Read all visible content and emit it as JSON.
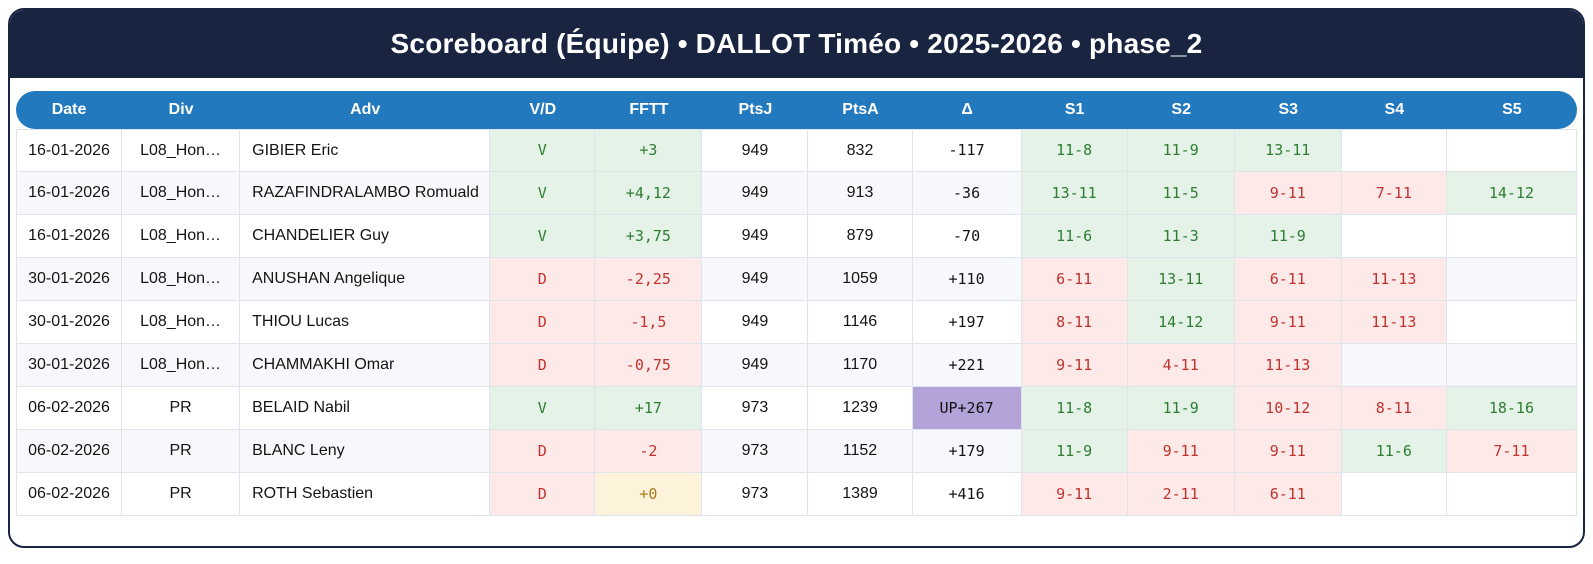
{
  "title": "Scoreboard (Équipe) • DALLOT Timéo • 2025-2026 • phase_2",
  "colors": {
    "navy": "#192440",
    "blue": "#2379bd",
    "win-bg": "#e5f2e7",
    "win-text": "#2e7d32",
    "loss-bg": "#fdeae8",
    "loss-text": "#c0332f",
    "zero-bg": "#fdf3da",
    "zero-text": "#ad7b19",
    "up-bg": "#b4a3d8"
  },
  "table": {
    "columns": [
      {
        "key": "date",
        "label": "Date"
      },
      {
        "key": "div",
        "label": "Div"
      },
      {
        "key": "adv",
        "label": "Adv"
      },
      {
        "key": "vd",
        "label": "V/D"
      },
      {
        "key": "fftt",
        "label": "FFTT"
      },
      {
        "key": "ptsj",
        "label": "PtsJ"
      },
      {
        "key": "ptsa",
        "label": "PtsA"
      },
      {
        "key": "delta",
        "label": "Δ"
      },
      {
        "key": "s1",
        "label": "S1"
      },
      {
        "key": "s2",
        "label": "S2"
      },
      {
        "key": "s3",
        "label": "S3"
      },
      {
        "key": "s4",
        "label": "S4"
      },
      {
        "key": "s5",
        "label": "S5"
      }
    ],
    "rows": [
      {
        "date": "16-01-2026",
        "div": "L08_Hon…",
        "adv": "GIBIER Eric",
        "vd": "V",
        "fftt": "+3",
        "fftt_result": "pos",
        "ptsj": "949",
        "ptsa": "832",
        "delta": "-117",
        "delta_highlight": "",
        "sets": [
          {
            "score": "11-8",
            "result": "win"
          },
          {
            "score": "11-9",
            "result": "win"
          },
          {
            "score": "13-11",
            "result": "win"
          },
          null,
          null
        ]
      },
      {
        "date": "16-01-2026",
        "div": "L08_Hon…",
        "adv": "RAZAFINDRALAMBO Romuald",
        "vd": "V",
        "fftt": "+4,12",
        "fftt_result": "pos",
        "ptsj": "949",
        "ptsa": "913",
        "delta": "-36",
        "delta_highlight": "",
        "sets": [
          {
            "score": "13-11",
            "result": "win"
          },
          {
            "score": "11-5",
            "result": "win"
          },
          {
            "score": "9-11",
            "result": "loss"
          },
          {
            "score": "7-11",
            "result": "loss"
          },
          {
            "score": "14-12",
            "result": "win"
          }
        ]
      },
      {
        "date": "16-01-2026",
        "div": "L08_Hon…",
        "adv": "CHANDELIER Guy",
        "vd": "V",
        "fftt": "+3,75",
        "fftt_result": "pos",
        "ptsj": "949",
        "ptsa": "879",
        "delta": "-70",
        "delta_highlight": "",
        "sets": [
          {
            "score": "11-6",
            "result": "win"
          },
          {
            "score": "11-3",
            "result": "win"
          },
          {
            "score": "11-9",
            "result": "win"
          },
          null,
          null
        ]
      },
      {
        "date": "30-01-2026",
        "div": "L08_Hon…",
        "adv": "ANUSHAN Angelique",
        "vd": "D",
        "fftt": "-2,25",
        "fftt_result": "neg",
        "ptsj": "949",
        "ptsa": "1059",
        "delta": "+110",
        "delta_highlight": "",
        "sets": [
          {
            "score": "6-11",
            "result": "loss"
          },
          {
            "score": "13-11",
            "result": "win"
          },
          {
            "score": "6-11",
            "result": "loss"
          },
          {
            "score": "11-13",
            "result": "loss"
          },
          null
        ]
      },
      {
        "date": "30-01-2026",
        "div": "L08_Hon…",
        "adv": "THIOU Lucas",
        "vd": "D",
        "fftt": "-1,5",
        "fftt_result": "neg",
        "ptsj": "949",
        "ptsa": "1146",
        "delta": "+197",
        "delta_highlight": "",
        "sets": [
          {
            "score": "8-11",
            "result": "loss"
          },
          {
            "score": "14-12",
            "result": "win"
          },
          {
            "score": "9-11",
            "result": "loss"
          },
          {
            "score": "11-13",
            "result": "loss"
          },
          null
        ]
      },
      {
        "date": "30-01-2026",
        "div": "L08_Hon…",
        "adv": "CHAMMAKHI Omar",
        "vd": "D",
        "fftt": "-0,75",
        "fftt_result": "neg",
        "ptsj": "949",
        "ptsa": "1170",
        "delta": "+221",
        "delta_highlight": "",
        "sets": [
          {
            "score": "9-11",
            "result": "loss"
          },
          {
            "score": "4-11",
            "result": "loss"
          },
          {
            "score": "11-13",
            "result": "loss"
          },
          null,
          null
        ]
      },
      {
        "date": "06-02-2026",
        "div": "PR",
        "adv": "BELAID Nabil",
        "vd": "V",
        "fftt": "+17",
        "fftt_result": "pos",
        "ptsj": "973",
        "ptsa": "1239",
        "delta": "UP+267",
        "delta_highlight": "up",
        "sets": [
          {
            "score": "11-8",
            "result": "win"
          },
          {
            "score": "11-9",
            "result": "win"
          },
          {
            "score": "10-12",
            "result": "loss"
          },
          {
            "score": "8-11",
            "result": "loss"
          },
          {
            "score": "18-16",
            "result": "win"
          }
        ]
      },
      {
        "date": "06-02-2026",
        "div": "PR",
        "adv": "BLANC Leny",
        "vd": "D",
        "fftt": "-2",
        "fftt_result": "neg",
        "ptsj": "973",
        "ptsa": "1152",
        "delta": "+179",
        "delta_highlight": "",
        "sets": [
          {
            "score": "11-9",
            "result": "win"
          },
          {
            "score": "9-11",
            "result": "loss"
          },
          {
            "score": "9-11",
            "result": "loss"
          },
          {
            "score": "11-6",
            "result": "win"
          },
          {
            "score": "7-11",
            "result": "loss"
          }
        ]
      },
      {
        "date": "06-02-2026",
        "div": "PR",
        "adv": "ROTH Sebastien",
        "vd": "D",
        "fftt": "+0",
        "fftt_result": "zero",
        "ptsj": "973",
        "ptsa": "1389",
        "delta": "+416",
        "delta_highlight": "",
        "sets": [
          {
            "score": "9-11",
            "result": "loss"
          },
          {
            "score": "2-11",
            "result": "loss"
          },
          {
            "score": "6-11",
            "result": "loss"
          },
          null,
          null
        ]
      }
    ]
  }
}
